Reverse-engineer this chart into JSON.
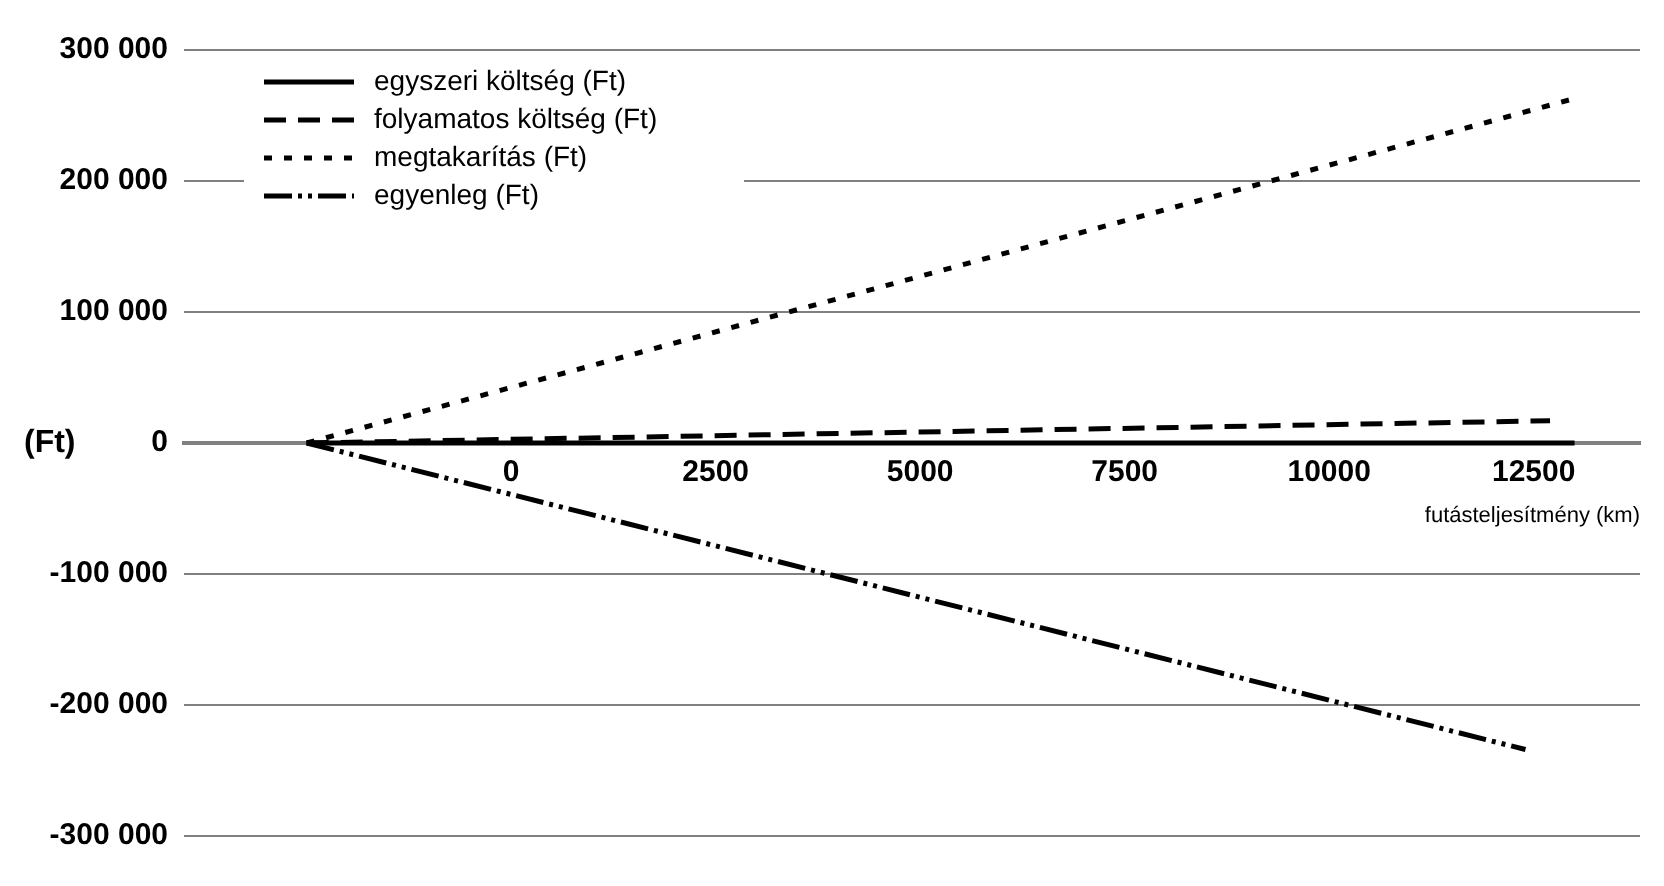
{
  "chart_data": {
    "type": "line",
    "xlabel": "futásteljesítmény (km)",
    "ylabel": "(Ft)",
    "xlim": [
      -4000,
      13800
    ],
    "xticks": [
      0,
      2500,
      5000,
      7500,
      10000,
      12500
    ],
    "ylim": [
      -300000,
      300000
    ],
    "yticks": [
      {
        "value": -300000,
        "label": "-300 000"
      },
      {
        "value": -200000,
        "label": "-200 000"
      },
      {
        "value": -100000,
        "label": "-100 000"
      },
      {
        "value": 0,
        "label": "0"
      },
      {
        "value": 100000,
        "label": "100 000"
      },
      {
        "value": 200000,
        "label": "200 000"
      },
      {
        "value": 300000,
        "label": "300 000"
      }
    ],
    "grid": "y",
    "legend": "top left",
    "marker": "none",
    "series": [
      {
        "name": "egyszeri költség (Ft)",
        "color": "#000000",
        "line_style": "solid",
        "x": [
          -2500,
          13000
        ],
        "values": [
          0,
          0
        ]
      },
      {
        "name": "folyamatos költség (Ft)",
        "color": "#000000",
        "line_style": "dashed",
        "x": [
          -2500,
          12700
        ],
        "values": [
          0,
          17000
        ]
      },
      {
        "name": "megtakarítás (Ft)",
        "color": "#000000",
        "line_style": "dotted",
        "x": [
          -2500,
          13000
        ],
        "values": [
          0,
          263000
        ]
      },
      {
        "name": "egyenleg (Ft)",
        "color": "#000000",
        "line_style": "dashdotdot",
        "x": [
          -2500,
          12400
        ],
        "values": [
          0,
          -234000
        ]
      }
    ]
  }
}
